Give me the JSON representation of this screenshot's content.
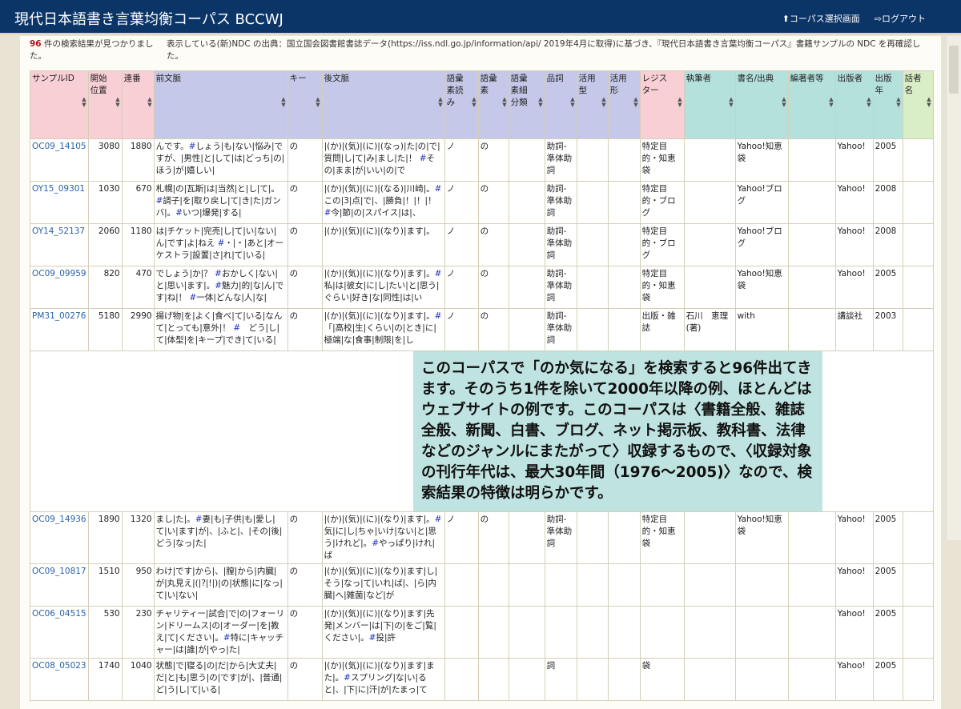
{
  "header": {
    "title": "現代日本語書き言葉均衡コーパス BCCWJ",
    "nav_corpus": "コーパス選択画面",
    "nav_logout": "ログアウト"
  },
  "result": {
    "count": "96",
    "count_text": "件の検索結果が見つかりました。",
    "ndc_note": "表示している(新)NDC の出典：国立国会図書館書誌データ(https://iss.ndl.go.jp/information/api/ 2019年4月に取得)に基づき、『現代日本語書き言葉均衡コーパス』書籍サンプルの NDC を再確認した。"
  },
  "columns": [
    "サンプルID",
    "開始位置",
    "連番",
    "前文脈",
    "キー",
    "後文脈",
    "語彙素読み",
    "語彙素",
    "語彙素細分類",
    "品詞",
    "活用型",
    "活用形",
    "レジスター",
    "執筆者",
    "書名/出典",
    "編著者等",
    "出版者",
    "出版年",
    "話者名"
  ],
  "colors": {
    "header_bar": "#0b3467",
    "pink": "#f9cfd6",
    "lavender": "#c5c8e8",
    "teal": "#b4e1dc",
    "green": "#d9edc6",
    "overlay": "#bfe3e0"
  },
  "rows": [
    [
      "OC09_14105",
      "3080",
      "1880",
      "んです。#しょう|も|ない|悩み|ですが、|男性|と|して|は|どっち|の|ほう|が|嬉しい|",
      "の",
      "|(か)|(気)|(に)|(なっ)|た|の|で|質問|し|て|み|まし|た|！ #その|まま|が|いい|の|で",
      "ノ",
      "の",
      "",
      "助詞-準体助詞",
      "",
      "",
      "特定目的・知恵袋",
      "",
      "Yahoo!知恵袋",
      "",
      "Yahoo!",
      "2005",
      ""
    ],
    [
      "OY15_09301",
      "1030",
      "670",
      "札幌|の|瓦斯|は|当然|と|し|て|。#調子|を|取り戻し|て|き|た|ガンバ|。#いつ|爆発|する|",
      "の",
      "|(か)|(気)|(に)|(なる)|川崎|。#この|3|点|で|、|勝負|！|！|！ #今|節|の|スパイス|は|、",
      "ノ",
      "の",
      "",
      "助詞-準体助詞",
      "",
      "",
      "特定目的・ブログ",
      "",
      "Yahoo!ブログ",
      "",
      "Yahoo!",
      "2008",
      ""
    ],
    [
      "OY14_52137",
      "2060",
      "1180",
      "は|チケット|完売|し|て|い|ない|ん|です|よ|ねえ #・|・|あと|オーケストラ|設置|さ|れ|て|いる|",
      "の",
      "|(か)|(気)|(に)|(なり)|ます|。",
      "ノ",
      "の",
      "",
      "助詞-準体助詞",
      "",
      "",
      "特定目的・ブログ",
      "",
      "Yahoo!ブログ",
      "",
      "Yahoo!",
      "2008",
      ""
    ],
    [
      "OC09_09959",
      "820",
      "470",
      "でしょう|か|？ #おかしく|ない|と|思い|ます|。#魅力|的|な|ん|です|ね|！ #一体|どんな|人|な|",
      "の",
      "|(か)|(気)|(に)|(なり)|ます|。#私|は|彼女|に|し|たい|と|思う|ぐらい|好き|な|同性|は|い",
      "ノ",
      "の",
      "",
      "助詞-準体助詞",
      "",
      "",
      "特定目的・知恵袋",
      "",
      "Yahoo!知恵袋",
      "",
      "Yahoo!",
      "2005",
      ""
    ],
    [
      "PM31_00276",
      "5180",
      "2990",
      "揚げ物|を|よく|食べ|て|いる|なんて|とっても|意外|！ #　どう|し|て|体型|を|キープ|でき|て|いる|",
      "の",
      "|(か)|(気)|(に)|(なり)|ます|。#「|高校|生|くらい|の|とき|に|極端|な|食事|制限|を|し",
      "ノ",
      "の",
      "",
      "助詞-準体助詞",
      "",
      "",
      "出版・雑誌",
      "石川　恵理(著)",
      "with",
      "",
      "講談社",
      "2003",
      ""
    ],
    [
      "OC09_14936",
      "1890",
      "1320",
      "まし|た|。#妻|も|子供|も|愛し|て|い|ます|が|、|ふと|、|その|後|どう|なっ|た|",
      "の",
      "|(か)|(気)|(に)|(なり)|ます|。#気|に|し|ちゃ|いけ|ない|と|思う|けれど|。#やっぱり|けれ|ば",
      "ノ",
      "の",
      "",
      "助詞-準体助詞",
      "",
      "",
      "特定目的・知恵袋",
      "",
      "Yahoo!知恵袋",
      "",
      "Yahoo!",
      "2005",
      ""
    ],
    [
      "OC09_10817",
      "1510",
      "950",
      "わけ|です|から|、|膣|から|内臓|が|丸見え|(|?|!|)|の|状態|に|なっ|て|い|ない|",
      "の",
      "|(か)|(気)|(に)|(なり)|ます|し|そう|なっ|て|いれ|ば|、|ら|内臓|へ|雑菌|など|が",
      "",
      "",
      "",
      "",
      "",
      "",
      "",
      "",
      "",
      "",
      "Yahoo!",
      "2005",
      ""
    ],
    [
      "OC06_04515",
      "530",
      "230",
      "チャリティー|試合|で|の|フォーリン|ドリームス|の|オーダー|を|教え|て|ください|。#特に|キャッチャー|は|誰|が|やっ|た|",
      "の",
      "|(か)|(気)|(に)|(なり)|ます|先発|メンバー|は|下|の|をご|覧|ください|。#投|許",
      "",
      "",
      "",
      "",
      "",
      "",
      "",
      "",
      "",
      "",
      "Yahoo!",
      "2005",
      ""
    ],
    [
      "OC08_05023",
      "1740",
      "1040",
      "状態|で|寝る|の|だ|から|大丈夫|だ|と|も|思う|の|です|が|、|普通|ど|う|し|て|いる|",
      "の",
      "|(か)|(気)|(に)|(なり)|ます|また|。#スプリング|な|い|ると|、|下|に|汗|が|たまっ|て",
      "",
      "",
      "",
      "詞",
      "",
      "",
      "袋",
      "",
      "",
      "",
      "Yahoo!",
      "2005",
      ""
    ]
  ],
  "overlay_text": "このコーパスで「のか気になる」を検索すると96件出てきます。そのうち1件を除いて2000年以降の例、ほとんどはウェブサイトの例です。このコーパスは〈書籍全般、雑誌全般、新聞、白書、ブログ、ネット掲示板、教科書、法律などのジャンルにまたがって〉収録するもので、〈収録対象の刊行年代は、最大30年間（1976～2005)〉なので、検索結果の特徴は明らかです。"
}
